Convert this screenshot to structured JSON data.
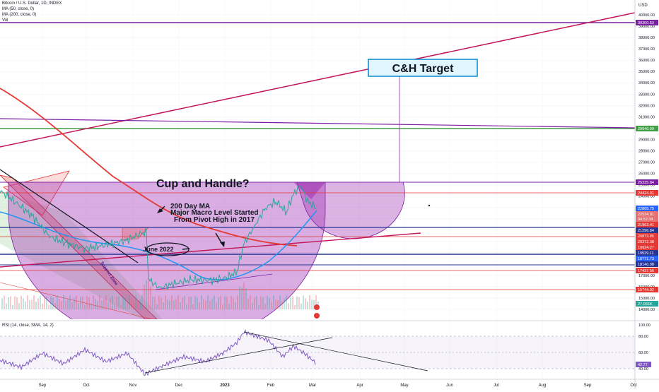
{
  "header": {
    "symbol": "Bitcoin / U.S. Dollar, 1D, INDEX",
    "ma50": "MA (50, close, 0)",
    "ma200": "MA (200, close, 0)",
    "vol": "Vol"
  },
  "currency": "USD",
  "price_ticks": [
    "40000.00",
    "39000.00",
    "38000.00",
    "37000.00",
    "36000.00",
    "35000.00",
    "34000.00",
    "33000.00",
    "32000.00",
    "31000.00",
    "30000.00",
    "29000.00",
    "28000.00",
    "27000.00",
    "26000.00",
    "25000.00",
    "24000.00",
    "23000.00",
    "22000.00",
    "21000.00",
    "20000.00",
    "19000.00",
    "18000.00",
    "17000.00",
    "16000.00",
    "15000.00",
    "14000.00"
  ],
  "price_badges": [
    {
      "label": "39300.53",
      "color": "#7b1fa2"
    },
    {
      "label": "29940.99",
      "color": "#43a047"
    },
    {
      "label": "25235.84",
      "color": "#7b1fa2"
    },
    {
      "label": "24424.91",
      "color": "#e53935"
    },
    {
      "label": "22865.75",
      "color": "#2962ff"
    },
    {
      "label": "22534.91",
      "color": "#e57373"
    },
    {
      "label": "04:52:34",
      "color": "#e57373"
    },
    {
      "label": "21963.41",
      "color": "#e53935"
    },
    {
      "label": "21296.84",
      "color": "#283593"
    },
    {
      "label": "20873.85",
      "color": "#e53935"
    },
    {
      "label": "20372.08",
      "color": "#e53935"
    },
    {
      "label": "19924.27",
      "color": "#e53935"
    },
    {
      "label": "19529.11",
      "color": "#283593"
    },
    {
      "label": "18771.73",
      "color": "#2962ff"
    },
    {
      "label": "18140.08",
      "color": "#283593"
    },
    {
      "label": "17437.56",
      "color": "#e53935"
    },
    {
      "label": "15744.92",
      "color": "#e53935"
    },
    {
      "label": "27.066K",
      "color": "#26a69a"
    }
  ],
  "time_ticks": [
    "Sep",
    "Oct",
    "Nov",
    "Dec",
    "2023",
    "Feb",
    "Mar",
    "Apr",
    "May",
    "Jun",
    "Jul",
    "Aug",
    "Sep",
    "Oct"
  ],
  "annotations": {
    "target": "C&H Target",
    "cup": "Cup and Handle?",
    "ma200_1": "200 Day MA",
    "ma200_2": "Major Macro Level Started",
    "ma200_3": "From Pivot High in 2017",
    "june": "June 2022",
    "support": "Support Zone"
  },
  "rsi": {
    "title": "RSI (14, close, SMA, 14, 2)",
    "ticks": [
      "100.00",
      "80.00",
      "60.00",
      "40.00"
    ],
    "value_badge": "42.77"
  },
  "colors": {
    "cup_fill": "#9c27b0",
    "red_line": "#c2185b",
    "purple_line": "#7b1fa2",
    "green_line": "#43a047",
    "ma_blue": "#2196f3",
    "ma_red": "#e53935"
  },
  "chart_data": {
    "type": "line",
    "title": "Bitcoin / U.S. Dollar, 1D, INDEX",
    "ylabel": "USD",
    "ylim": [
      14000,
      40000
    ],
    "x": [
      "Aug",
      "Sep",
      "Oct",
      "Nov",
      "Dec",
      "2023",
      "Feb",
      "Mar"
    ],
    "series": [
      {
        "name": "Bitcoin / U.S. Dollar",
        "values": [
          23800,
          20000,
          19300,
          20500,
          17000,
          16600,
          23500,
          22500
        ]
      }
    ],
    "horizontal_levels": [
      39300.53,
      29940.99,
      25235.84,
      24424.91,
      21963.41,
      21296.84,
      20873.85,
      20372.08,
      19924.27,
      19529.11,
      18140.08,
      17437.56,
      15744.92
    ],
    "rsi_ylim": [
      0,
      100
    ],
    "rsi_last": 42.77,
    "grid": true
  }
}
